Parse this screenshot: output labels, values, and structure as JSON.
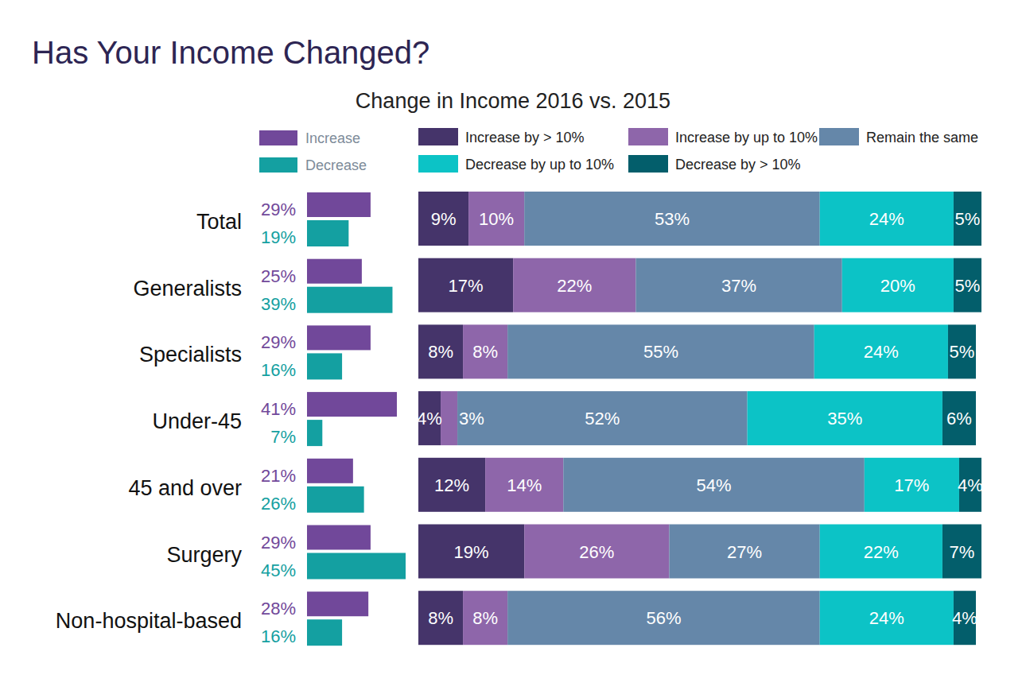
{
  "chart_data": [
    {
      "type": "bar",
      "title": "Has Your Income Changed?",
      "orientation": "horizontal",
      "categories": [
        "Total",
        "Generalists",
        "Specialists",
        "Under-45",
        "45 and over",
        "Surgery",
        "Non-hospital-based"
      ],
      "series": [
        {
          "name": "Increase",
          "color": "#71489a",
          "values": [
            29,
            25,
            29,
            41,
            21,
            29,
            28
          ],
          "value_labels": [
            "29%",
            "25%",
            "29%",
            "41%",
            "21%",
            "29%",
            "28%"
          ]
        },
        {
          "name": "Decrease",
          "color": "#14a0a1",
          "values": [
            19,
            39,
            16,
            7,
            26,
            45,
            16
          ],
          "value_labels": [
            "19%",
            "39%",
            "16%",
            "7%",
            "26%",
            "45%",
            "16%"
          ]
        }
      ],
      "xlim": [
        0,
        45
      ],
      "data_labels": true,
      "tick_labels": "y",
      "legend": "top"
    },
    {
      "type": "bar",
      "title": "Change in Income 2016 vs. 2015",
      "orientation": "horizontal",
      "stacked": true,
      "series": [
        {
          "name": "Increase by > 10%",
          "color": "#45346a",
          "values": [
            9,
            17,
            8,
            4,
            12,
            19,
            8
          ],
          "value_labels": [
            "9%",
            "17%",
            "8%",
            "4%",
            "12%",
            "19%",
            "8%"
          ]
        },
        {
          "name": "Increase by up to 10%",
          "color": "#8e66aa",
          "values": [
            10,
            22,
            8,
            3,
            14,
            26,
            8
          ],
          "value_labels": [
            "10%",
            "22%",
            "8%",
            "3%",
            "14%",
            "26%",
            "8%"
          ]
        },
        {
          "name": "Remain the same",
          "color": "#6587a9",
          "values": [
            53,
            37,
            55,
            52,
            54,
            27,
            56
          ],
          "value_labels": [
            "53%",
            "37%",
            "55%",
            "52%",
            "54%",
            "27%",
            "56%"
          ]
        },
        {
          "name": "Decrease by up to 10%",
          "color": "#0cc3c6",
          "values": [
            24,
            20,
            24,
            35,
            17,
            22,
            24
          ],
          "value_labels": [
            "24%",
            "20%",
            "24%",
            "35%",
            "17%",
            "22%",
            "24%"
          ]
        },
        {
          "name": "Decrease by > 10%",
          "color": "#035e6b",
          "values": [
            5,
            5,
            5,
            6,
            4,
            7,
            4
          ],
          "value_labels": [
            "5%",
            "5%",
            "5%",
            "6%",
            "4%",
            "7%",
            "4%"
          ]
        }
      ],
      "xlim": [
        0,
        101
      ],
      "data_labels": true,
      "tick_labels": false,
      "legend": "top"
    }
  ]
}
